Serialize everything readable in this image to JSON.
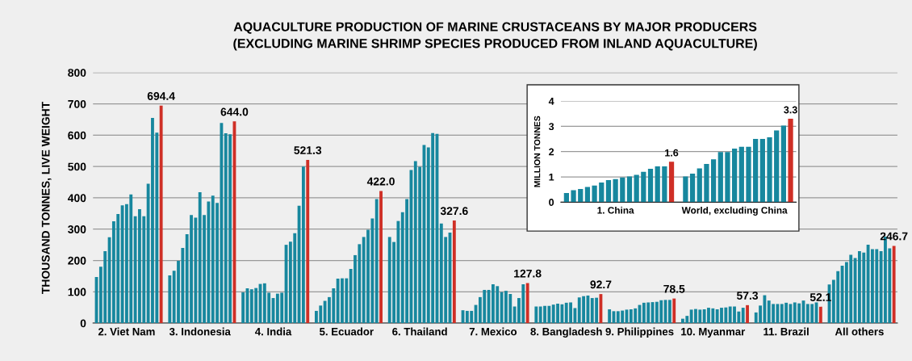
{
  "chart_data": [
    {
      "type": "bar",
      "title": "AQUACULTURE PRODUCTION OF MARINE CRUSTACEANS BY MAJOR PRODUCERS\n(EXCLUDING MARINE SHRIMP SPECIES PRODUCED FROM INLAND AQUACULTURE)",
      "ylabel": "THOUSAND TONNES, LIVE WEIGHT",
      "ylim": [
        0,
        800
      ],
      "yticks": [
        0,
        100,
        200,
        300,
        400,
        500,
        600,
        700,
        800
      ],
      "grid": "y",
      "categories": [
        null,
        null,
        null,
        null,
        null,
        null,
        null,
        "2. Viet Nam",
        null,
        null,
        null,
        null,
        null,
        null,
        null,
        null,
        null,
        null,
        null,
        null,
        null,
        null,
        null,
        null,
        "3. Indonesia",
        null,
        null,
        null,
        null,
        null,
        null,
        null,
        null,
        null,
        null,
        null,
        null,
        null,
        null,
        null,
        null,
        "4. India",
        null,
        null,
        null,
        null,
        null,
        null,
        null,
        null,
        null,
        null,
        null,
        null,
        null,
        null,
        null,
        null,
        "5. Ecuador",
        null,
        null,
        null,
        null,
        null,
        null,
        null,
        null,
        null,
        null,
        null,
        null,
        null,
        null,
        null,
        null,
        "6. Thailand",
        null,
        null,
        null,
        null,
        null,
        null,
        null,
        null,
        null,
        null,
        null,
        null,
        null,
        null,
        null,
        null,
        "7. Mexico",
        null,
        null,
        null,
        null,
        null,
        null,
        null,
        null,
        null,
        null,
        null,
        null,
        null,
        null,
        null,
        null,
        "8. Bangladesh",
        null,
        null,
        null,
        null,
        null,
        null,
        null,
        null,
        null,
        null,
        null,
        null,
        null,
        null,
        null,
        null,
        "9. Philippines",
        null,
        null,
        null,
        null,
        null,
        null,
        null,
        null,
        null,
        null,
        null,
        null,
        null,
        null,
        null,
        null,
        "10. Myanmar",
        null,
        null,
        null,
        null,
        null,
        null,
        null,
        null,
        null,
        null,
        null,
        null,
        null,
        null,
        null,
        null,
        "11. Brazil",
        null,
        null,
        null,
        null,
        null,
        null,
        null,
        null,
        null,
        null,
        null,
        null,
        null,
        null,
        null,
        null,
        "All others",
        null,
        null,
        null,
        null,
        null,
        null,
        null,
        null
      ],
      "values": [
        147,
        180,
        230,
        274,
        325,
        348,
        376,
        380,
        411,
        341,
        364,
        341,
        445,
        655,
        608,
        694.4,
        null,
        152,
        167,
        199,
        240,
        284,
        345,
        337,
        418,
        345,
        388,
        407,
        384,
        639,
        606,
        603,
        644.0,
        null,
        98,
        111,
        108,
        112,
        125,
        127,
        97,
        80,
        94,
        97,
        250,
        260,
        287,
        375,
        500,
        521.3,
        null,
        39,
        56,
        71,
        83,
        111,
        142,
        143,
        143,
        173,
        217,
        252,
        275,
        298,
        334,
        396,
        422.0,
        null,
        275,
        259,
        326,
        354,
        396,
        489,
        517,
        499,
        569,
        561,
        607,
        604,
        318,
        275,
        289,
        327.6,
        null,
        41,
        39,
        39,
        58,
        83,
        106,
        106,
        124,
        118,
        99,
        103,
        93,
        53,
        80,
        124,
        127.8,
        null,
        53,
        53,
        55,
        55,
        59,
        62,
        60,
        65,
        66,
        48,
        82,
        86,
        88,
        80,
        81,
        92.7,
        null,
        44,
        38,
        38,
        40,
        43,
        44,
        47,
        58,
        65,
        66,
        67,
        68,
        73,
        74,
        74,
        78.5,
        null,
        14,
        23,
        43,
        45,
        43,
        44,
        49,
        47,
        44,
        49,
        50,
        53,
        53,
        37,
        49,
        57.3,
        null,
        34,
        56,
        89,
        72,
        61,
        61,
        61,
        65,
        61,
        66,
        63,
        72,
        61,
        61,
        66,
        52.1,
        null,
        123,
        138,
        166,
        183,
        195,
        218,
        208,
        230,
        225,
        250,
        236,
        236,
        230,
        276,
        239,
        246.7
      ],
      "value_labels": [
        null,
        null,
        null,
        null,
        null,
        null,
        null,
        null,
        null,
        null,
        null,
        null,
        null,
        null,
        null,
        "694.4",
        null,
        null,
        null,
        null,
        null,
        null,
        null,
        null,
        null,
        null,
        null,
        null,
        null,
        null,
        null,
        null,
        "644.0",
        null,
        null,
        null,
        null,
        null,
        null,
        null,
        null,
        null,
        null,
        null,
        null,
        null,
        null,
        null,
        null,
        "521.3",
        null,
        null,
        null,
        null,
        null,
        null,
        null,
        null,
        null,
        null,
        null,
        null,
        null,
        null,
        null,
        null,
        "422.0",
        null,
        null,
        null,
        null,
        null,
        null,
        null,
        null,
        null,
        null,
        null,
        null,
        null,
        null,
        null,
        null,
        "327.6",
        null,
        null,
        null,
        null,
        null,
        null,
        null,
        null,
        null,
        null,
        null,
        null,
        null,
        null,
        null,
        null,
        "127.8",
        null,
        null,
        null,
        null,
        null,
        null,
        null,
        null,
        null,
        null,
        null,
        null,
        null,
        null,
        null,
        null,
        "92.7",
        null,
        null,
        null,
        null,
        null,
        null,
        null,
        null,
        null,
        null,
        null,
        null,
        null,
        null,
        null,
        null,
        "78.5",
        null,
        null,
        null,
        null,
        null,
        null,
        null,
        null,
        null,
        null,
        null,
        null,
        null,
        null,
        null,
        null,
        "57.3",
        null,
        null,
        null,
        null,
        null,
        null,
        null,
        null,
        null,
        null,
        null,
        null,
        null,
        null,
        null,
        null,
        "52.1",
        null,
        null,
        null,
        null,
        null,
        null,
        null,
        null,
        null,
        null,
        null,
        null,
        null,
        null,
        null,
        null,
        "246.7"
      ],
      "colors": [
        "#17879e",
        "#17879e",
        "#17879e",
        "#17879e",
        "#17879e",
        "#17879e",
        "#17879e",
        "#17879e",
        "#17879e",
        "#17879e",
        "#17879e",
        "#17879e",
        "#17879e",
        "#17879e",
        "#17879e",
        "#cf2f26",
        null,
        "#17879e",
        "#17879e",
        "#17879e",
        "#17879e",
        "#17879e",
        "#17879e",
        "#17879e",
        "#17879e",
        "#17879e",
        "#17879e",
        "#17879e",
        "#17879e",
        "#17879e",
        "#17879e",
        "#17879e",
        "#cf2f26",
        null,
        "#17879e",
        "#17879e",
        "#17879e",
        "#17879e",
        "#17879e",
        "#17879e",
        "#17879e",
        "#17879e",
        "#17879e",
        "#17879e",
        "#17879e",
        "#17879e",
        "#17879e",
        "#17879e",
        "#17879e",
        "#cf2f26",
        null,
        "#17879e",
        "#17879e",
        "#17879e",
        "#17879e",
        "#17879e",
        "#17879e",
        "#17879e",
        "#17879e",
        "#17879e",
        "#17879e",
        "#17879e",
        "#17879e",
        "#17879e",
        "#17879e",
        "#17879e",
        "#cf2f26",
        null,
        "#17879e",
        "#17879e",
        "#17879e",
        "#17879e",
        "#17879e",
        "#17879e",
        "#17879e",
        "#17879e",
        "#17879e",
        "#17879e",
        "#17879e",
        "#17879e",
        "#17879e",
        "#17879e",
        "#17879e",
        "#cf2f26",
        null,
        "#17879e",
        "#17879e",
        "#17879e",
        "#17879e",
        "#17879e",
        "#17879e",
        "#17879e",
        "#17879e",
        "#17879e",
        "#17879e",
        "#17879e",
        "#17879e",
        "#17879e",
        "#17879e",
        "#17879e",
        "#cf2f26",
        null,
        "#17879e",
        "#17879e",
        "#17879e",
        "#17879e",
        "#17879e",
        "#17879e",
        "#17879e",
        "#17879e",
        "#17879e",
        "#17879e",
        "#17879e",
        "#17879e",
        "#17879e",
        "#17879e",
        "#17879e",
        "#cf2f26",
        null,
        "#17879e",
        "#17879e",
        "#17879e",
        "#17879e",
        "#17879e",
        "#17879e",
        "#17879e",
        "#17879e",
        "#17879e",
        "#17879e",
        "#17879e",
        "#17879e",
        "#17879e",
        "#17879e",
        "#17879e",
        "#cf2f26",
        null,
        "#17879e",
        "#17879e",
        "#17879e",
        "#17879e",
        "#17879e",
        "#17879e",
        "#17879e",
        "#17879e",
        "#17879e",
        "#17879e",
        "#17879e",
        "#17879e",
        "#17879e",
        "#17879e",
        "#17879e",
        "#cf2f26",
        null,
        "#17879e",
        "#17879e",
        "#17879e",
        "#17879e",
        "#17879e",
        "#17879e",
        "#17879e",
        "#17879e",
        "#17879e",
        "#17879e",
        "#17879e",
        "#17879e",
        "#17879e",
        "#17879e",
        "#17879e",
        "#cf2f26",
        null,
        "#17879e",
        "#17879e",
        "#17879e",
        "#17879e",
        "#17879e",
        "#17879e",
        "#17879e",
        "#17879e",
        "#17879e",
        "#17879e",
        "#17879e",
        "#17879e",
        "#17879e",
        "#17879e",
        "#17879e",
        "#cf2f26"
      ]
    },
    {
      "type": "bar",
      "ylabel": "MILLION TONNES",
      "ylim": [
        0,
        4
      ],
      "yticks": [
        0,
        1,
        2,
        3,
        4
      ],
      "grid": "y",
      "categories": [
        null,
        null,
        null,
        null,
        null,
        null,
        null,
        "1. China",
        null,
        null,
        null,
        null,
        null,
        null,
        null,
        null,
        null,
        null,
        null,
        null,
        null,
        null,
        null,
        null,
        "World, excluding China",
        null,
        null,
        null,
        null,
        null,
        null,
        null,
        null
      ],
      "values": [
        0.36,
        0.47,
        0.52,
        0.6,
        0.66,
        0.78,
        0.87,
        0.91,
        0.98,
        1.02,
        1.08,
        1.2,
        1.32,
        1.42,
        1.42,
        1.6,
        null,
        1.02,
        1.13,
        1.34,
        1.51,
        1.7,
        1.98,
        1.98,
        2.12,
        2.19,
        2.19,
        2.5,
        2.5,
        2.57,
        2.84,
        3.03,
        3.3
      ],
      "value_labels": [
        null,
        null,
        null,
        null,
        null,
        null,
        null,
        null,
        null,
        null,
        null,
        null,
        null,
        null,
        null,
        "1.6",
        null,
        null,
        null,
        null,
        null,
        null,
        null,
        null,
        null,
        null,
        null,
        null,
        null,
        null,
        null,
        null,
        "3.3"
      ],
      "colors": [
        "#17879e",
        "#17879e",
        "#17879e",
        "#17879e",
        "#17879e",
        "#17879e",
        "#17879e",
        "#17879e",
        "#17879e",
        "#17879e",
        "#17879e",
        "#17879e",
        "#17879e",
        "#17879e",
        "#17879e",
        "#cf2f26",
        null,
        "#17879e",
        "#17879e",
        "#17879e",
        "#17879e",
        "#17879e",
        "#17879e",
        "#17879e",
        "#17879e",
        "#17879e",
        "#17879e",
        "#17879e",
        "#17879e",
        "#17879e",
        "#17879e",
        "#17879e",
        "#cf2f26"
      ]
    }
  ]
}
